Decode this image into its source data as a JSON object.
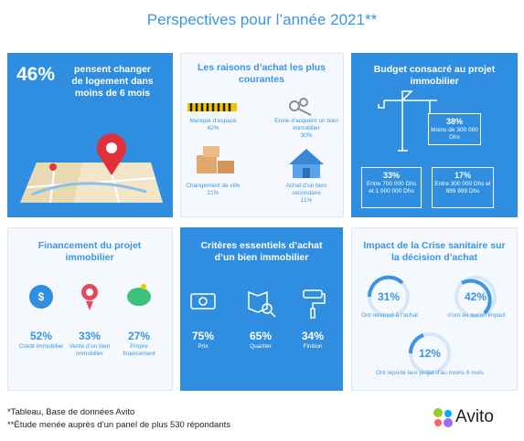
{
  "title": "Perspectives pour l’année 2021**",
  "panels": [
    {
      "stat": "46%",
      "text": "pensent changer de logement dans moins de 6 mois"
    },
    {
      "title": "Les raisons d’achat les plus courantes",
      "items": [
        {
          "label": "Manque d’espace",
          "value": "42%"
        },
        {
          "label": "Envie d’acquérir un bien immobilier",
          "value": "30%"
        },
        {
          "label": "Changement de ville",
          "value": "21%"
        },
        {
          "label": "Achat d’un bien secondaire",
          "value": "11%"
        }
      ]
    },
    {
      "title": "Budget consacré au projet immobilier",
      "items": [
        {
          "value": "38%",
          "label": "Moins de 300 000 Dhs"
        },
        {
          "value": "33%",
          "label": "Entre 700 000 Dhs et 1 000 000 Dhs"
        },
        {
          "value": "17%",
          "label": "Entre 300 000 Dhs et 699 999 Dhs"
        }
      ]
    },
    {
      "title": "Financement du projet immobilier",
      "items": [
        {
          "value": "52%",
          "label": "Crédit immobilier"
        },
        {
          "value": "33%",
          "label": "Vente d’un bien immobilier"
        },
        {
          "value": "27%",
          "label": "Propre financement"
        }
      ]
    },
    {
      "title": "Critères essentiels d’achat d’un bien immobilier",
      "items": [
        {
          "value": "75%",
          "label": "Prix"
        },
        {
          "value": "65%",
          "label": "Quartier"
        },
        {
          "value": "34%",
          "label": "Finition"
        }
      ]
    },
    {
      "title": "Impact de la Crise sanitaire sur la décision d’achat",
      "items": [
        {
          "value": "31%",
          "label": "Ont renoncé à l’achat"
        },
        {
          "value": "42%",
          "label": "n’ont eu aucun impact"
        },
        {
          "value": "12%",
          "label": "Ont reporté leur projet d’au moins 6 mois"
        }
      ]
    }
  ],
  "footnotes": [
    "*Tableau, Base de données Avito",
    "**Étude menée auprès d’un panel de plus 530 répondants"
  ],
  "logo": "Avito"
}
